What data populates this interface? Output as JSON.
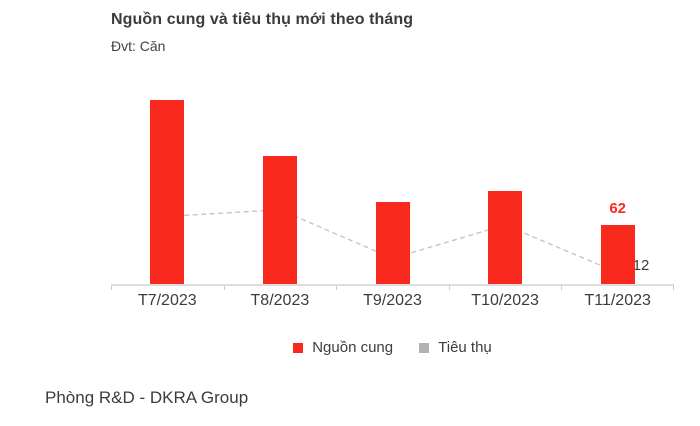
{
  "header": {
    "title": "Nguồn cung và tiêu thụ mới theo tháng",
    "unit": "Đvt: Căn"
  },
  "legend": {
    "items": [
      {
        "label": "Nguồn cung",
        "color": "#fa291e",
        "marker": "square"
      },
      {
        "label": "Tiêu thụ",
        "color": "#b3b3b3",
        "marker": "square"
      }
    ]
  },
  "footer": {
    "text": "Phòng R&D - DKRA Group"
  },
  "colors": {
    "bar_red": "#fa291e",
    "marker_gray": "#acacac",
    "dash_line_gray": "#c5c5c5",
    "axis_gray": "#dcdcdc",
    "text_dark": "#3c3c3c"
  },
  "chart_data": {
    "type": "bar",
    "subtype": "bar-with-dashed-line-overlay",
    "title": "Nguồn cung và tiêu thụ mới theo tháng",
    "unit_label": "Đvt: Căn",
    "categories": [
      "T7/2023",
      "T8/2023",
      "T9/2023",
      "T10/2023",
      "T11/2023"
    ],
    "series": [
      {
        "name": "Nguồn cung",
        "type": "bar",
        "color": "#fa291e",
        "values": [
          193,
          134,
          86,
          98,
          62
        ]
      },
      {
        "name": "Tiêu thụ",
        "type": "line",
        "line_style": "dashed",
        "marker": "diamond",
        "marker_color": "#acacac",
        "line_color": "#c5c5c5",
        "values": [
          71,
          78,
          27,
          62,
          12
        ]
      }
    ],
    "value_labels": [
      {
        "series": "Nguồn cung",
        "category": "T11/2023",
        "text": "62",
        "color": "#fa291e"
      },
      {
        "series": "Tiêu thụ",
        "category": "T11/2023",
        "text": "12",
        "color": "#3c3c3c"
      }
    ],
    "ylim": [
      0,
      210
    ],
    "grid": false,
    "y_axis_shown": false,
    "legend_position": "bottom"
  }
}
